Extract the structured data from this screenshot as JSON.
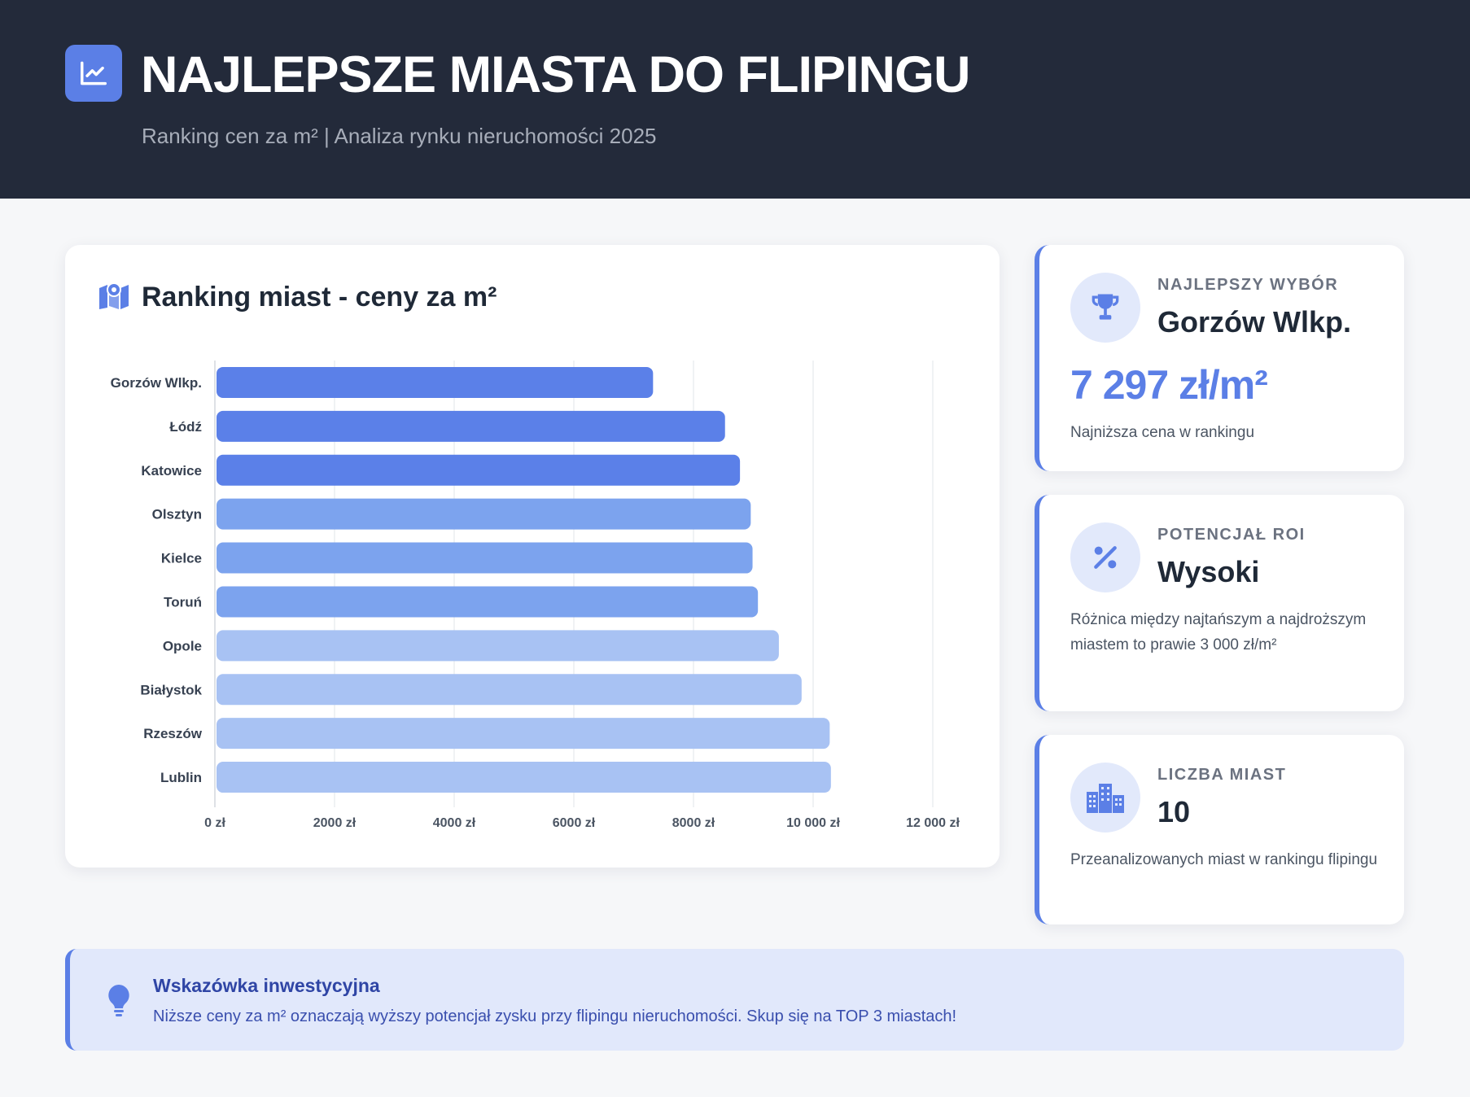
{
  "header": {
    "title": "NAJLEPSZE MIASTA DO FLIPINGU",
    "subtitle": "Ranking cen za m² | Analiza rynku nieruchomości 2025",
    "icon": "trend-chart-icon"
  },
  "chart_card": {
    "title": "Ranking miast - ceny za m²",
    "icon": "map-icon"
  },
  "chart_data": {
    "type": "bar",
    "orientation": "horizontal",
    "title": "Ranking miast - ceny za m²",
    "categories": [
      "Gorzów Wlkp.",
      "Łódź",
      "Katowice",
      "Olsztyn",
      "Kielce",
      "Toruń",
      "Opole",
      "Białystok",
      "Rzeszów",
      "Lublin"
    ],
    "values": [
      7297,
      8500,
      8750,
      8930,
      8960,
      9050,
      9400,
      9780,
      10250,
      10270
    ],
    "bar_colors": [
      "#5b80e8",
      "#5b80e8",
      "#5b80e8",
      "#7ca3ee",
      "#7ca3ee",
      "#7ca3ee",
      "#a8c2f3",
      "#a8c2f3",
      "#a8c2f3",
      "#a8c2f3"
    ],
    "xlim": [
      0,
      12000
    ],
    "xticks": [
      0,
      2000,
      4000,
      6000,
      8000,
      10000,
      12000
    ],
    "xtick_labels": [
      "0 zł",
      "2000 zł",
      "4000 zł",
      "6000 zł",
      "8000 zł",
      "10 000 zł",
      "12 000 zł"
    ],
    "grid": true,
    "xlabel": "",
    "ylabel": ""
  },
  "stats": [
    {
      "label": "NAJLEPSZY WYBÓR",
      "value": "Gorzów Wlkp.",
      "price": "7 297 zł/m²",
      "desc": "Najniższa cena w rankingu",
      "icon": "trophy-icon"
    },
    {
      "label": "POTENCJAŁ ROI",
      "value": "Wysoki",
      "desc": "Różnica między najtańszym a najdroższym miastem to prawie 3 000 zł/m²",
      "icon": "percent-icon"
    },
    {
      "label": "LICZBA MIAST",
      "value": "10",
      "desc": "Przeanalizowanych miast w rankingu flipingu",
      "icon": "city-icon"
    }
  ],
  "tip": {
    "title": "Wskazówka inwestycyjna",
    "text": "Niższe ceny za m² oznaczają wyższy potencjał zysku przy flipingu nieruchomości. Skup się na TOP 3 miastach!",
    "icon": "lightbulb-icon"
  },
  "colors": {
    "accent": "#5b7fe6",
    "header_bg": "#232a3a",
    "tip_bg": "#e1e8fb"
  }
}
